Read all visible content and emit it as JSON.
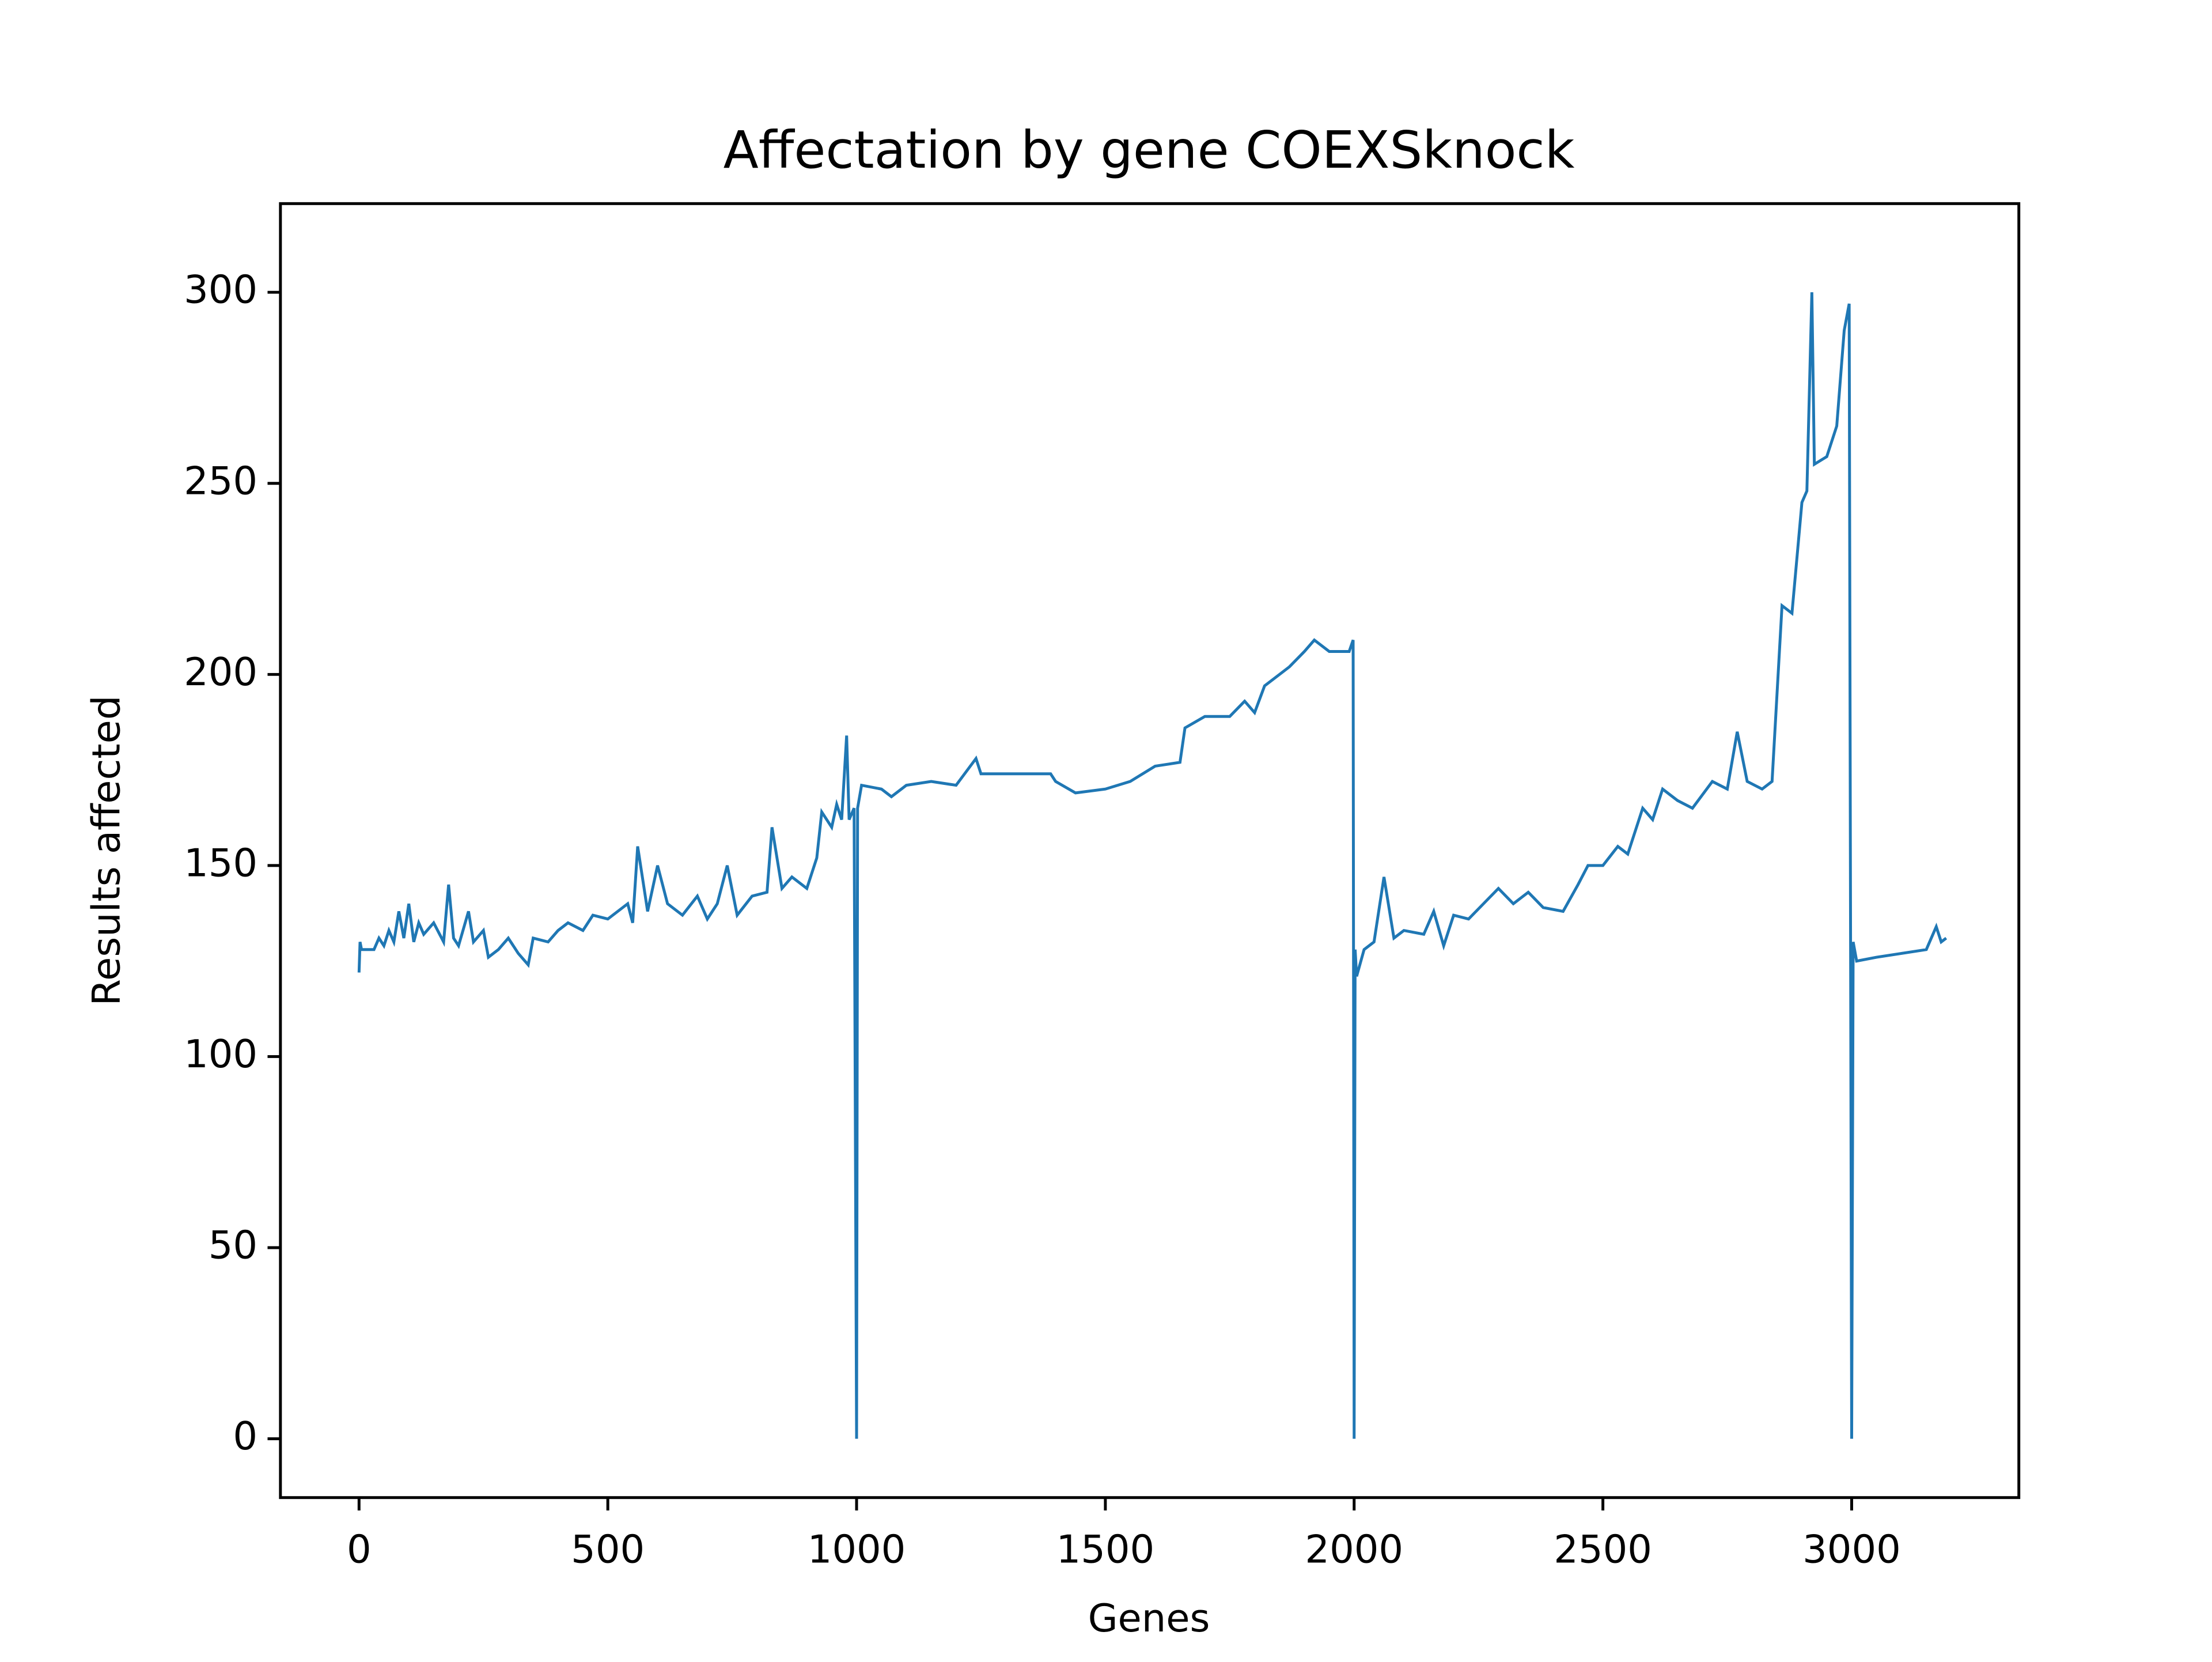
{
  "chart_data": {
    "type": "line",
    "title": "Affectation by gene COEXSknock",
    "xlabel": "Genes",
    "ylabel": "Results affected",
    "color": "#1f77b4",
    "grid": false,
    "xlim": [
      -158,
      3336
    ],
    "ylim": [
      -15.4,
      323.2
    ],
    "xticks": [
      0,
      500,
      1000,
      1500,
      2000,
      2500,
      3000
    ],
    "yticks": [
      0,
      50,
      100,
      150,
      200,
      250,
      300
    ],
    "x": [
      0,
      2,
      5,
      30,
      40,
      50,
      60,
      70,
      80,
      90,
      100,
      110,
      120,
      130,
      150,
      170,
      180,
      190,
      200,
      220,
      230,
      250,
      260,
      280,
      300,
      320,
      340,
      350,
      380,
      400,
      420,
      450,
      470,
      500,
      520,
      540,
      550,
      560,
      580,
      600,
      620,
      650,
      680,
      700,
      720,
      740,
      760,
      790,
      820,
      830,
      850,
      870,
      900,
      920,
      930,
      950,
      960,
      970,
      980,
      985,
      995,
      1000,
      1002,
      1010,
      1050,
      1070,
      1100,
      1150,
      1200,
      1240,
      1250,
      1300,
      1390,
      1400,
      1440,
      1500,
      1550,
      1600,
      1650,
      1660,
      1700,
      1750,
      1780,
      1800,
      1820,
      1850,
      1870,
      1900,
      1920,
      1950,
      1990,
      1998,
      2000,
      2002,
      2005,
      2020,
      2040,
      2060,
      2080,
      2100,
      2140,
      2160,
      2180,
      2200,
      2230,
      2260,
      2290,
      2320,
      2350,
      2380,
      2420,
      2450,
      2470,
      2500,
      2530,
      2550,
      2580,
      2600,
      2620,
      2650,
      2680,
      2720,
      2750,
      2770,
      2790,
      2820,
      2840,
      2860,
      2880,
      2900,
      2910,
      2920,
      2925,
      2950,
      2970,
      2985,
      2995,
      3000,
      3003,
      3010,
      3050,
      3100,
      3150,
      3170,
      3180,
      3190
    ],
    "values": [
      122,
      130,
      128,
      128,
      131,
      129,
      133,
      130,
      138,
      131,
      140,
      130,
      135,
      132,
      135,
      130,
      145,
      131,
      129,
      138,
      130,
      133,
      126,
      128,
      131,
      127,
      124,
      131,
      130,
      133,
      135,
      133,
      137,
      136,
      138,
      140,
      135,
      155,
      138,
      150,
      140,
      137,
      142,
      136,
      140,
      150,
      137,
      142,
      143,
      160,
      144,
      147,
      144,
      152,
      164,
      160,
      166,
      162,
      184,
      162,
      165,
      0,
      165,
      171,
      170,
      168,
      171,
      172,
      171,
      178,
      174,
      174,
      174,
      172,
      169,
      170,
      172,
      176,
      177,
      186,
      189,
      189,
      193,
      190,
      197,
      200,
      202,
      206,
      209,
      206,
      206,
      209,
      0,
      128,
      121,
      128,
      130,
      147,
      131,
      133,
      132,
      138,
      129,
      137,
      136,
      140,
      144,
      140,
      143,
      139,
      138,
      145,
      150,
      150,
      155,
      153,
      165,
      162,
      170,
      167,
      165,
      172,
      170,
      185,
      172,
      170,
      172,
      218,
      216,
      245,
      248,
      300,
      255,
      257,
      265,
      290,
      297,
      0,
      130,
      125,
      126,
      127,
      128,
      134,
      130,
      131
    ]
  }
}
